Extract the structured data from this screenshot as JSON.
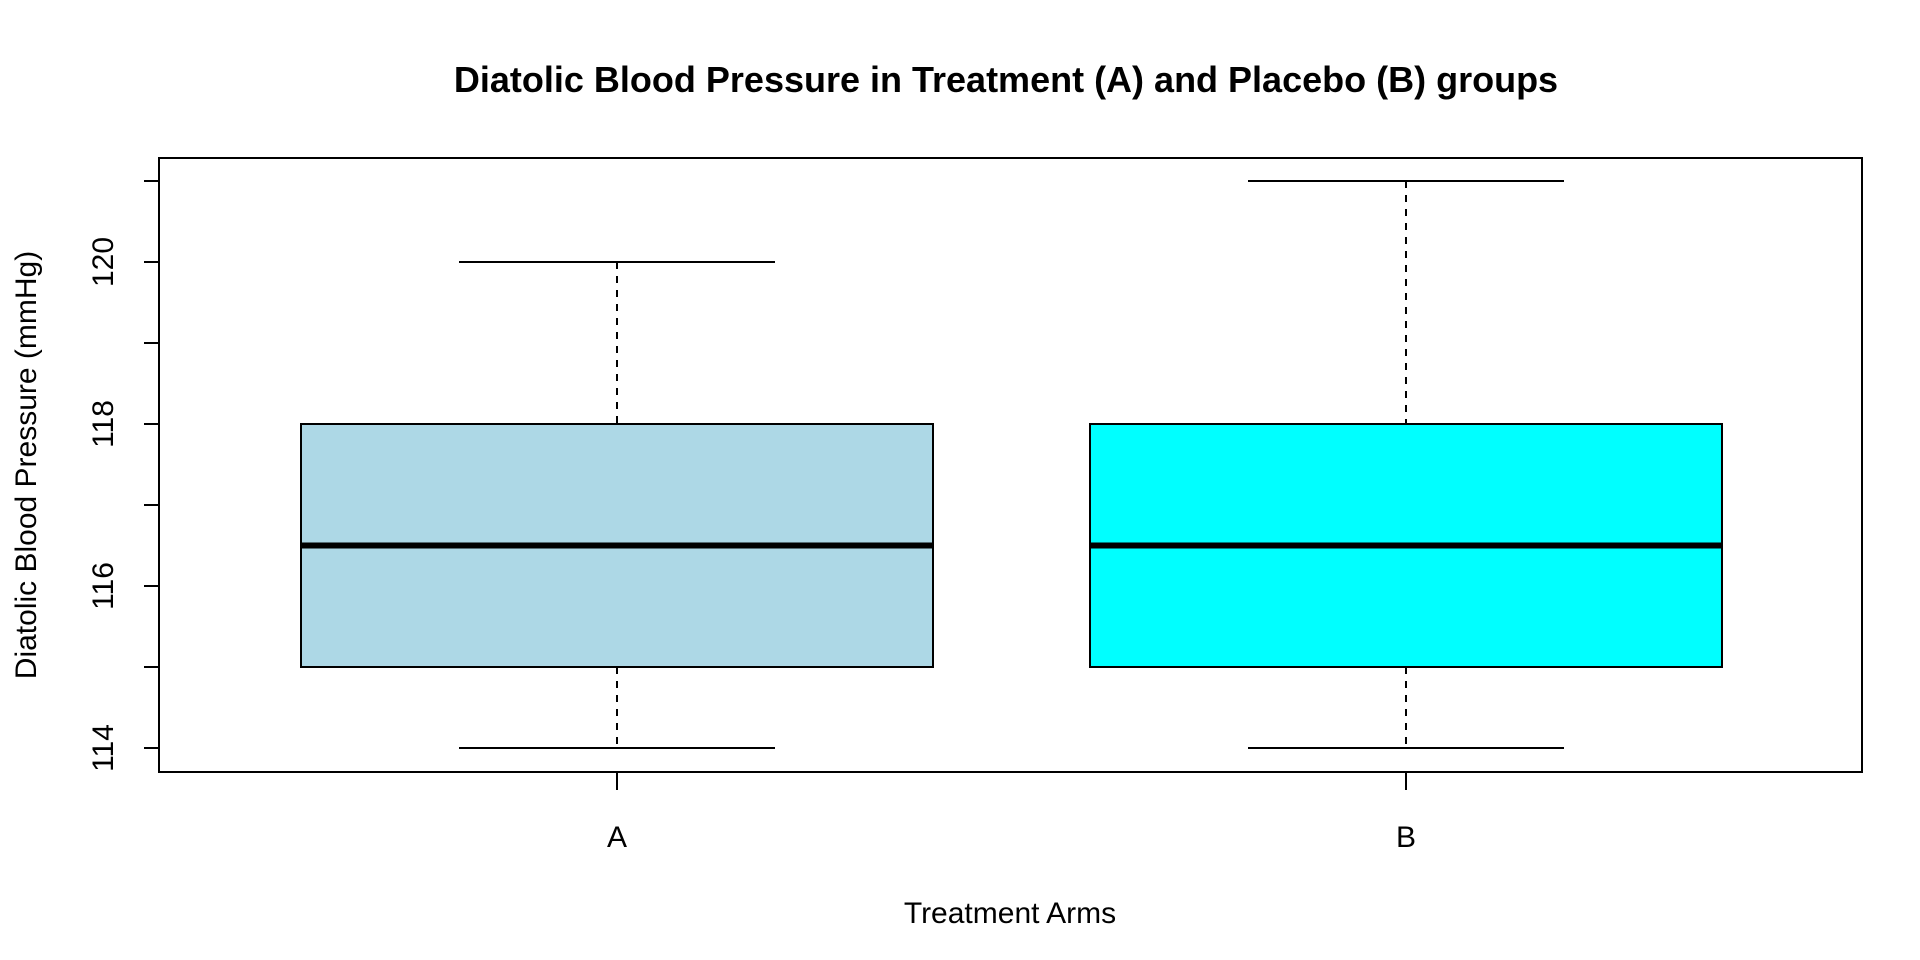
{
  "chart_data": {
    "type": "boxplot",
    "title": "Diatolic Blood Pressure in Treatment (A) and Placebo (B) groups",
    "xlabel": "Treatment Arms",
    "ylabel": "Diatolic Blood Pressure (mmHg)",
    "ylim": [
      113.7,
      121.3
    ],
    "y_ticks": [
      114,
      116,
      118,
      120
    ],
    "y_minor_ticks": [
      115,
      117,
      119,
      121
    ],
    "grid": false,
    "categories": [
      "A",
      "B"
    ],
    "boxes": [
      {
        "name": "A",
        "min": 114,
        "q1": 115,
        "median": 116.5,
        "q3": 118,
        "max": 120,
        "color": "#add8e6"
      },
      {
        "name": "B",
        "min": 114,
        "q1": 115,
        "median": 116.5,
        "q3": 118,
        "max": 121,
        "color": "#00ffff"
      }
    ]
  }
}
